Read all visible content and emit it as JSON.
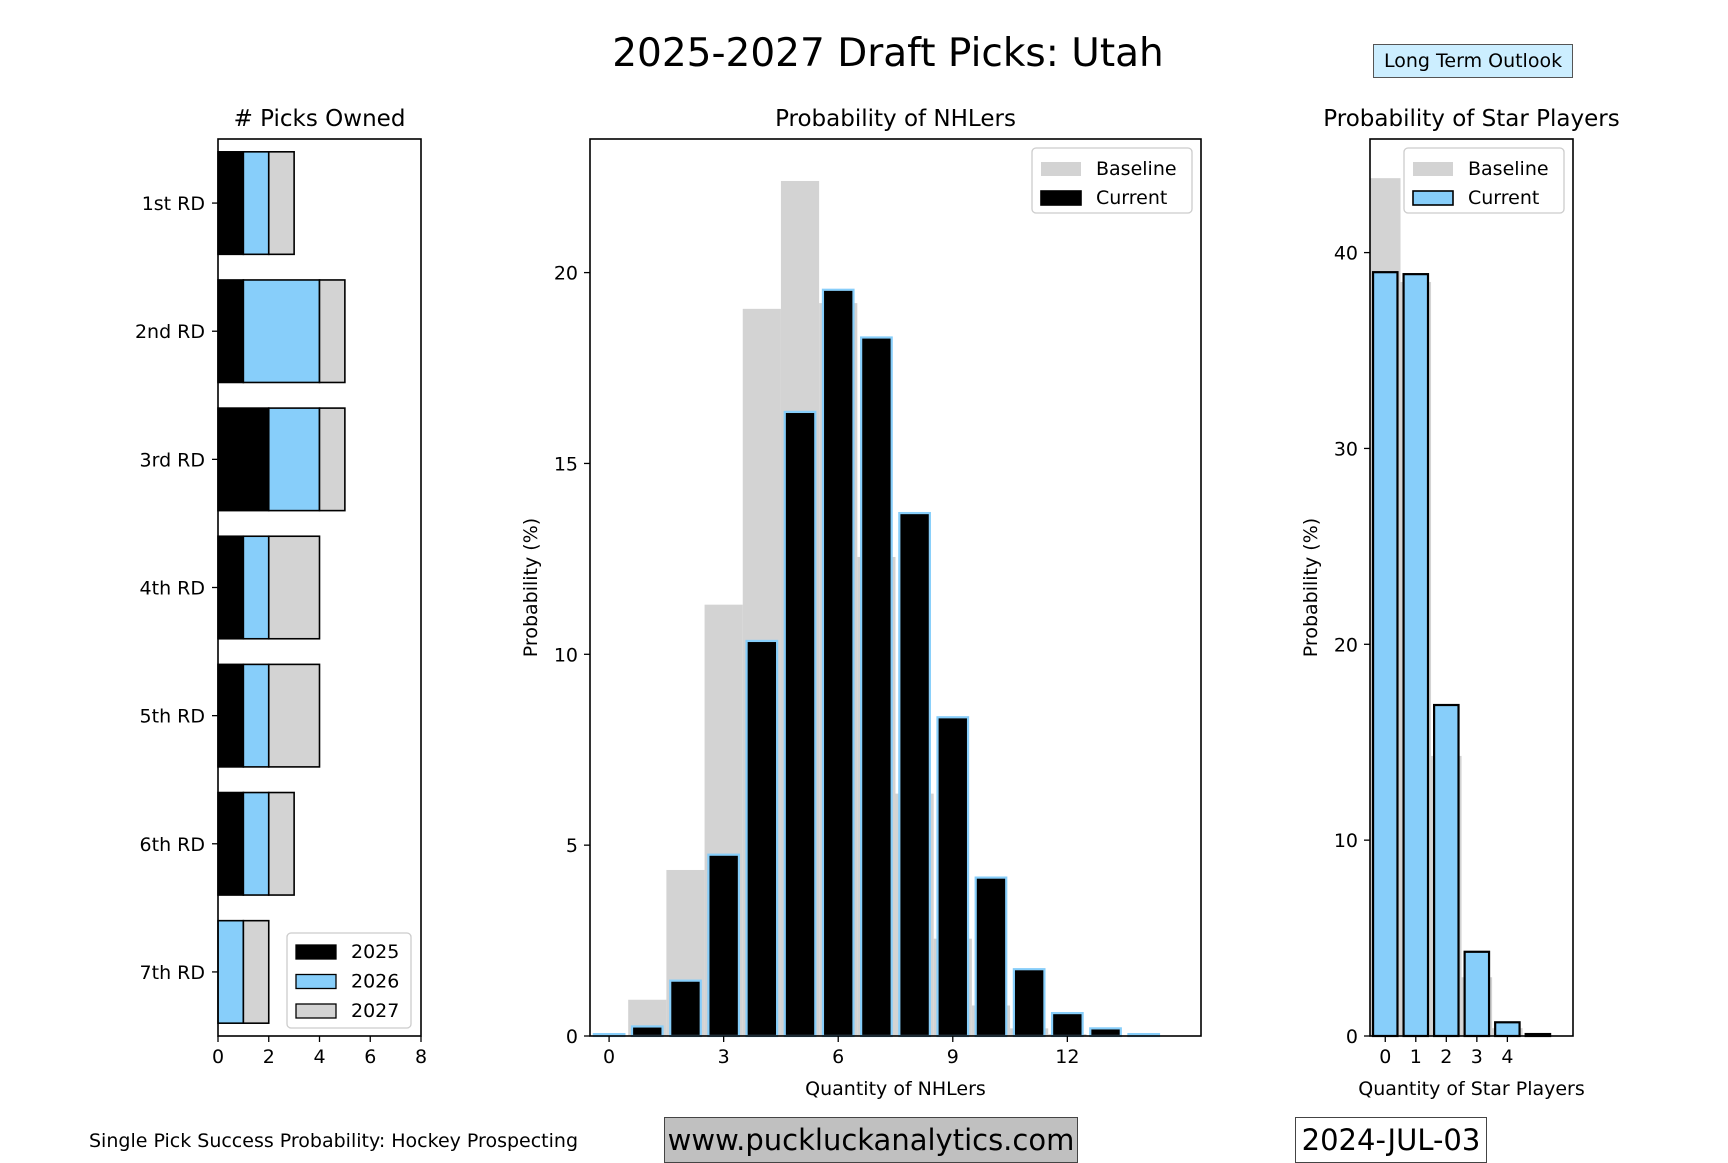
{
  "title": "2025-2027 Draft Picks: Utah",
  "outlook_button": {
    "label": "Long Term Outlook",
    "color": "#cceeff"
  },
  "footer": {
    "source_note": "Single Pick Success Probability: Hockey Prospecting",
    "website": "www.puckluckanalytics.com",
    "website_bg": "#c0c0c0",
    "date": "2024-JUL-03"
  },
  "colors": {
    "y2025": "#000000",
    "y2026": "#87cefa",
    "y2027": "#d3d3d3",
    "baseline": "#d3d3d3",
    "current_nhl": "#000000",
    "current_star": "#87cefa",
    "current_edge": "#87cefa"
  },
  "chart_data": [
    {
      "type": "bar",
      "orientation": "horizontal",
      "stacked": true,
      "title": "# Picks Owned",
      "xlabel": "",
      "ylabel": "",
      "xlim": [
        0,
        8
      ],
      "xticks": [
        0,
        2,
        4,
        6,
        8
      ],
      "categories": [
        "1st RD",
        "2nd RD",
        "3rd RD",
        "4th RD",
        "5th RD",
        "6th RD",
        "7th RD"
      ],
      "series": [
        {
          "name": "2025",
          "values": [
            1,
            1,
            2,
            1,
            1,
            1,
            0
          ]
        },
        {
          "name": "2026",
          "values": [
            1,
            3,
            2,
            1,
            1,
            1,
            1
          ]
        },
        {
          "name": "2027",
          "values": [
            1,
            1,
            1,
            2,
            2,
            1,
            1
          ]
        }
      ],
      "legend": "bottom-right"
    },
    {
      "type": "bar",
      "title": "Probability of NHLers",
      "xlabel": "Quantity of NHLers",
      "ylabel": "Probability (%)",
      "ylim": [
        0,
        23.5
      ],
      "yticks": [
        0,
        5,
        10,
        15,
        20
      ],
      "xticks": [
        0,
        3,
        6,
        9,
        12
      ],
      "x": [
        0,
        1,
        2,
        3,
        4,
        5,
        6,
        7,
        8,
        9,
        10,
        11,
        12,
        13,
        14
      ],
      "series": [
        {
          "name": "Baseline",
          "values": [
            0,
            0.95,
            4.35,
            11.3,
            19.05,
            22.4,
            19.2,
            12.55,
            6.35,
            2.55,
            0.8,
            0.2,
            0.05,
            0,
            0
          ]
        },
        {
          "name": "Current",
          "values": [
            0.05,
            0.25,
            1.45,
            4.75,
            10.35,
            16.35,
            19.55,
            18.3,
            13.7,
            8.35,
            4.15,
            1.75,
            0.6,
            0.2,
            0.05
          ]
        }
      ],
      "legend": "top-right"
    },
    {
      "type": "bar",
      "title": "Probability of Star Players",
      "xlabel": "Quantity of Star Players",
      "ylabel": "Probability (%)",
      "ylim": [
        0,
        45.8
      ],
      "yticks": [
        0,
        10,
        20,
        30,
        40
      ],
      "xticks": [
        0,
        1,
        2,
        3,
        4
      ],
      "x": [
        0,
        1,
        2,
        3,
        4,
        5
      ],
      "series": [
        {
          "name": "Baseline",
          "values": [
            43.8,
            38.5,
            14.3,
            3.0,
            0.4,
            0.0
          ]
        },
        {
          "name": "Current",
          "values": [
            39.0,
            38.9,
            16.9,
            4.3,
            0.7,
            0.1
          ]
        }
      ],
      "legend": "top-right"
    }
  ]
}
